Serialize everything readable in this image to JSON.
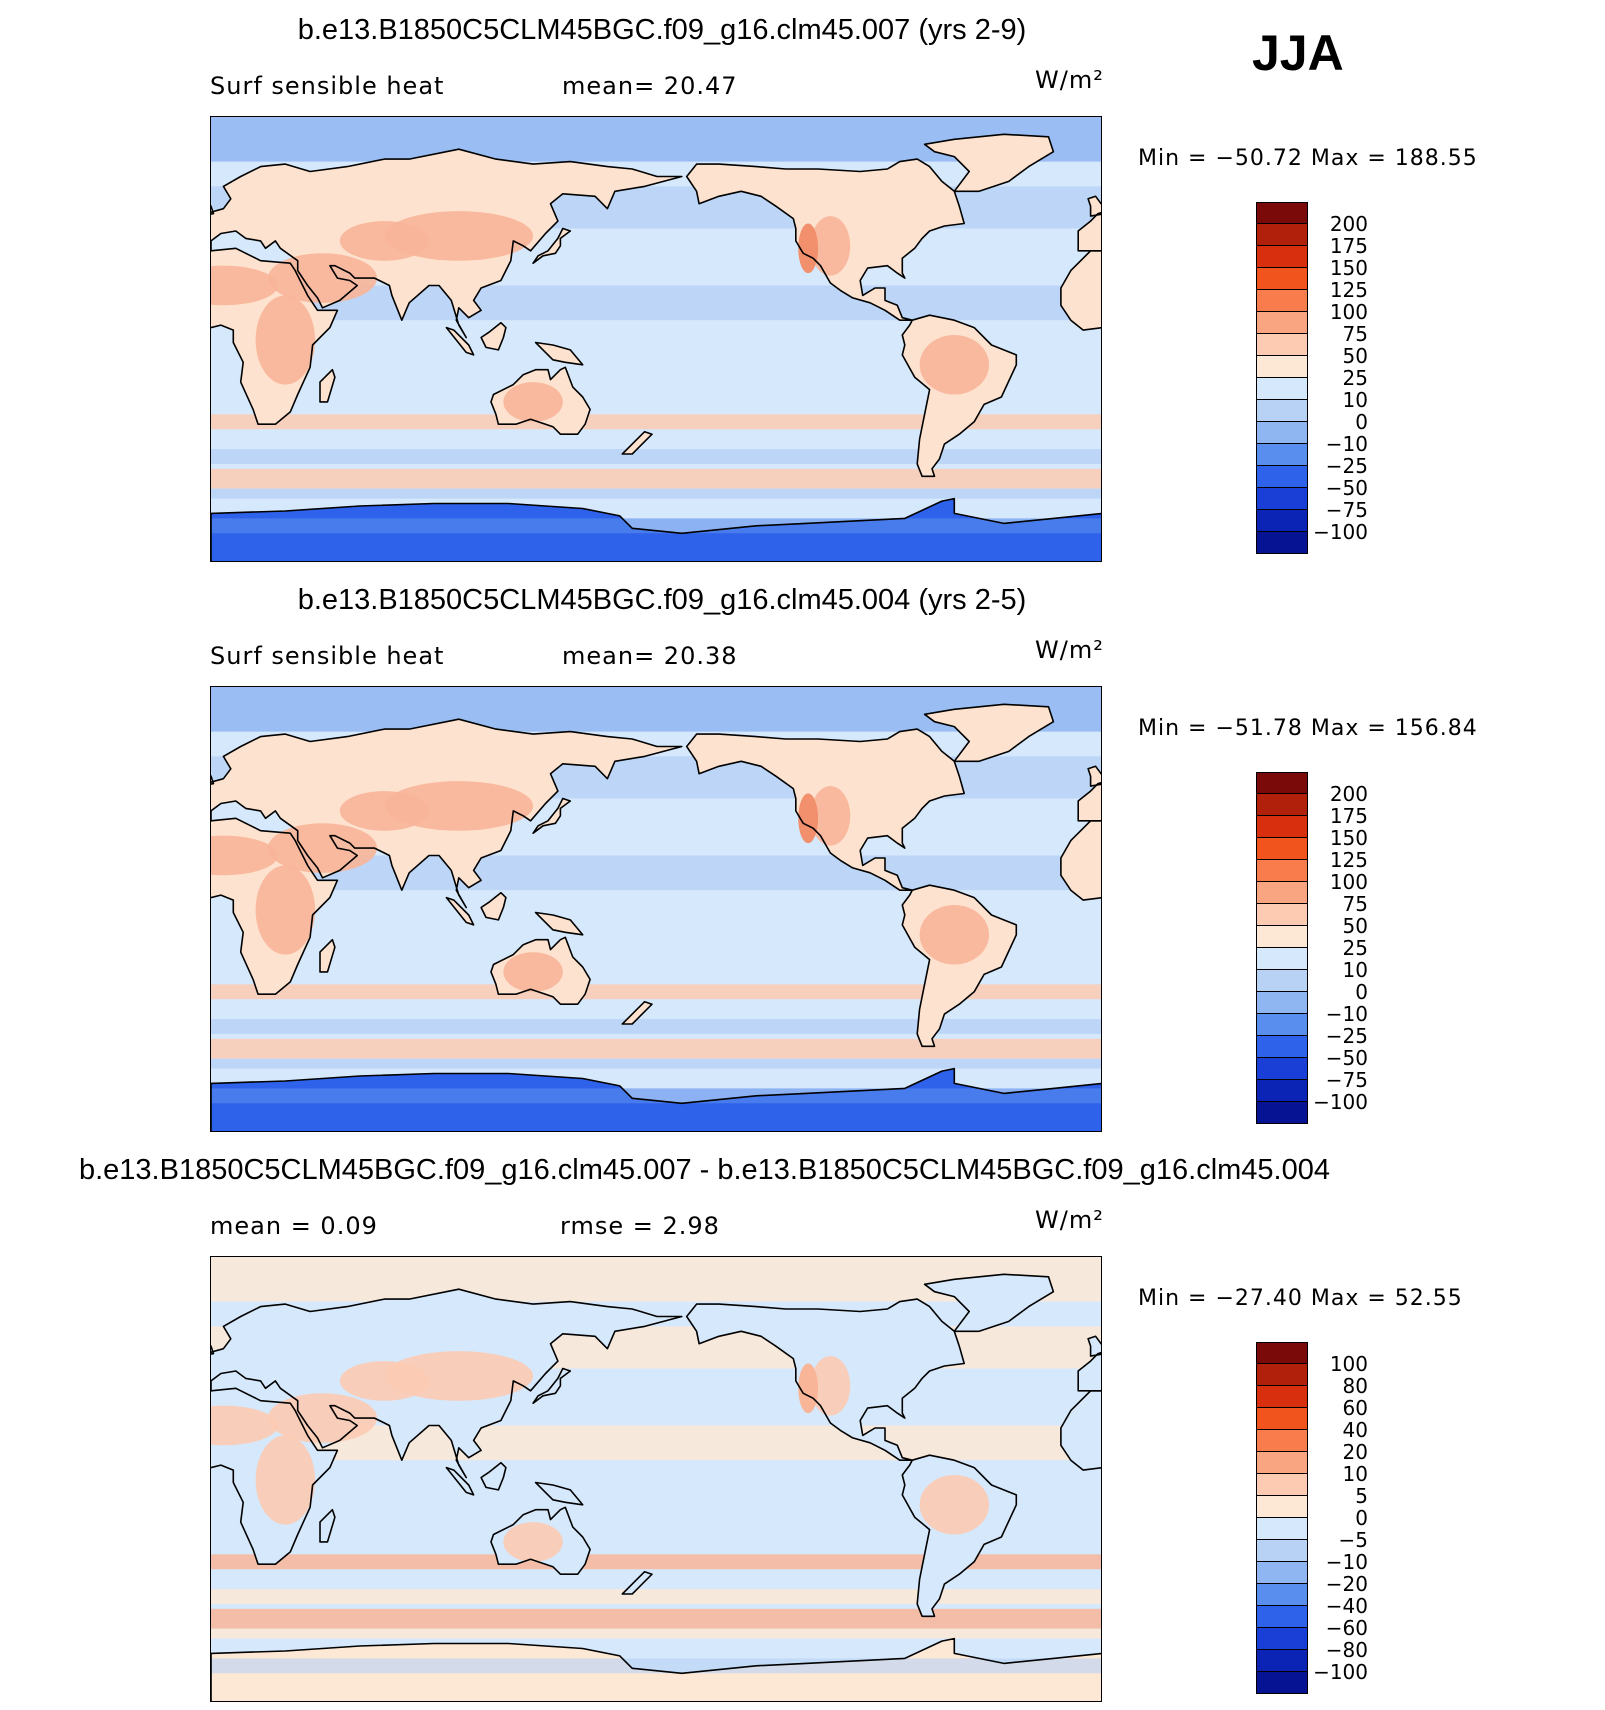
{
  "season": "JJA",
  "panels": [
    {
      "title": "b.e13.B1850C5CLM45BGC.f09_g16.clm45.007 (yrs 2-9)",
      "left_label": "Surf  sensible  heat",
      "mid_label": "mean=   20.47",
      "units": "W/m²",
      "minmax": "Min  =  −50.72  Max  =  188.55",
      "colorbar": [
        "200",
        "175",
        "150",
        "125",
        "100",
        "75",
        "50",
        "25",
        "10",
        "0",
        "−10",
        "−25",
        "−50",
        "−75",
        "−100"
      ]
    },
    {
      "title": "b.e13.B1850C5CLM45BGC.f09_g16.clm45.004 (yrs 2-5)",
      "left_label": "Surf  sensible  heat",
      "mid_label": "mean=   20.38",
      "units": "W/m²",
      "minmax": "Min  =  −51.78  Max  =  156.84",
      "colorbar": [
        "200",
        "175",
        "150",
        "125",
        "100",
        "75",
        "50",
        "25",
        "10",
        "0",
        "−10",
        "−25",
        "−50",
        "−75",
        "−100"
      ]
    },
    {
      "title": "b.e13.B1850C5CLM45BGC.f09_g16.clm45.007 - b.e13.B1850C5CLM45BGC.f09_g16.clm45.004",
      "left_label": "mean  =      0.09",
      "mid_label": "rmse  =      2.98",
      "units": "W/m²",
      "minmax": "Min  =  −27.40  Max  =     52.55",
      "colorbar": [
        "100",
        "80",
        "60",
        "40",
        "20",
        "10",
        "5",
        "0",
        "−5",
        "−10",
        "−20",
        "−40",
        "−60",
        "−80",
        "−100"
      ]
    }
  ],
  "colors": {
    "cbar": [
      "#7a0a0a",
      "#b0200a",
      "#d8300e",
      "#f2541e",
      "#f97d4c",
      "#faa582",
      "#fccbb2",
      "#fde8d6",
      "#d6e8fb",
      "#b8d2f6",
      "#8fb6f1",
      "#5a8eee",
      "#2f62ea",
      "#1a3fd6",
      "#0c24b5",
      "#061493"
    ],
    "ocean": "#d6e8fb",
    "land_warm": "#fde2cf",
    "antarctic": "#2f62ea"
  }
}
